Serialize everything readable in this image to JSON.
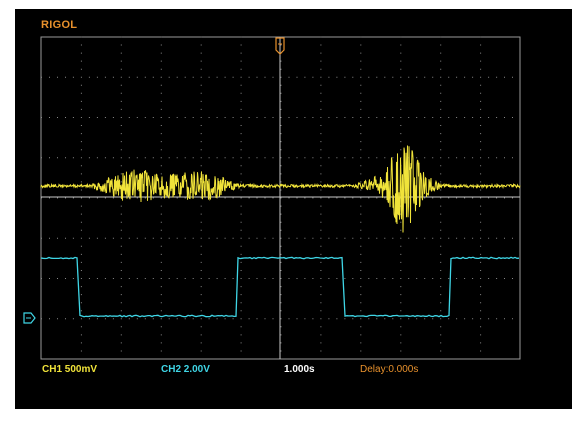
{
  "scope": {
    "brand": "RIGOL",
    "ch1_scale": "CH1 500mV",
    "ch2_scale": "CH2 2.00V",
    "timebase": "1.000s",
    "delay": "Delay:0.000s"
  },
  "colors": {
    "background": "#000000",
    "grid": "#9a9a9a",
    "ch1": "#f0e33a",
    "ch2": "#3fd6e6",
    "accent": "#e8912c"
  },
  "icons": {
    "trigger_position": "trigger-position-icon",
    "ch2_ground": "ch2-ground-marker-icon"
  }
}
